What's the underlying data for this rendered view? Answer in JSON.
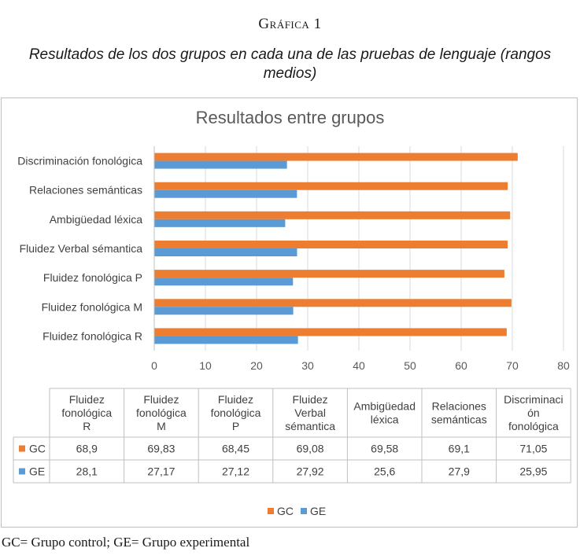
{
  "figure_label": "Gráfica 1",
  "figure_caption": "Resultados de los dos grupos en cada una de las pruebas de lenguaje (rangos medios)",
  "footnote": "GC= Grupo control; GE= Grupo experimental",
  "chart_data": {
    "type": "bar",
    "orientation": "horizontal",
    "title": "Resultados entre grupos",
    "categories": [
      "Fluidez fonológica R",
      "Fluidez fonológica M",
      "Fluidez fonológica P",
      "Fluidez Verbal sémantica",
      "Ambigüedad léxica",
      "Relaciones semánticas",
      "Discriminación fonológica"
    ],
    "table_headers": [
      "Fluidez fonológica R",
      "Fluidez fonológica M",
      "Fluidez fonológica P",
      "Fluidez Verbal sémantica",
      "Ambigüedad léxica",
      "Relaciones semánticas",
      "Discriminaci ón fonológica"
    ],
    "series": [
      {
        "name": "GC",
        "color": "#ED7D31",
        "values": [
          68.9,
          69.83,
          68.45,
          69.08,
          69.58,
          69.1,
          71.05
        ],
        "labels": [
          "68,9",
          "69,83",
          "68,45",
          "69,08",
          "69,58",
          "69,1",
          "71,05"
        ]
      },
      {
        "name": "GE",
        "color": "#5B9BD5",
        "values": [
          28.1,
          27.17,
          27.12,
          27.92,
          25.6,
          27.9,
          25.95
        ],
        "labels": [
          "28,1",
          "27,17",
          "27,12",
          "27,92",
          "25,6",
          "27,9",
          "25,95"
        ]
      }
    ],
    "xlim": [
      0,
      80
    ],
    "xticks": [
      0,
      10,
      20,
      30,
      40,
      50,
      60,
      70,
      80
    ],
    "grid": "vertical",
    "legend": "bottom"
  }
}
